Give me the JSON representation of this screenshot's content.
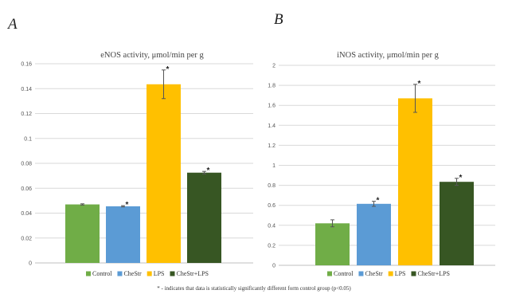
{
  "colors": {
    "Control": "#70ad47",
    "CheStr": "#5b9bd5",
    "LPS": "#ffc000",
    "CheStr+LPS": "#375623"
  },
  "legend": [
    "Control",
    "CheStr",
    "LPS",
    "CheStr+LPS"
  ],
  "footnote": "* - indicates that data is statistically significantly different form control group (p<0.05)",
  "chart_data": [
    {
      "panel": "A",
      "type": "bar",
      "title": "eNOS activity, μmol/min per g",
      "categories": [
        "Control",
        "CheStr",
        "LPS",
        "CheStr+LPS"
      ],
      "values": [
        0.047,
        0.0455,
        0.1435,
        0.0725
      ],
      "errors": [
        0.0005,
        0.0005,
        0.0115,
        0.001
      ],
      "significant": [
        false,
        true,
        true,
        true
      ],
      "significance_marker": "*",
      "ylim": [
        0,
        0.16
      ],
      "yticks": [
        "0",
        "0.02",
        "0.04",
        "0.06",
        "0.08",
        "0.1",
        "0.12",
        "0.14",
        "0.16"
      ],
      "ytick_values": [
        0,
        0.02,
        0.04,
        0.06,
        0.08,
        0.1,
        0.12,
        0.14,
        0.16
      ],
      "grid": true
    },
    {
      "panel": "B",
      "type": "bar",
      "title": "iNOS activity, μmol/min per g",
      "categories": [
        "Control",
        "CheStr",
        "LPS",
        "CheStr+LPS"
      ],
      "values": [
        0.42,
        0.615,
        1.67,
        0.835
      ],
      "errors": [
        0.035,
        0.025,
        0.14,
        0.035
      ],
      "significant": [
        false,
        true,
        true,
        true
      ],
      "significance_marker": "*",
      "ylim": [
        0,
        2
      ],
      "yticks": [
        "0",
        "0.2",
        "0.4",
        "0.6",
        "0.8",
        "1",
        "1.2",
        "1.4",
        "1.6",
        "1.8",
        "2"
      ],
      "ytick_values": [
        0,
        0.2,
        0.4,
        0.6,
        0.8,
        1,
        1.2,
        1.4,
        1.6,
        1.8,
        2
      ],
      "grid": true
    }
  ]
}
